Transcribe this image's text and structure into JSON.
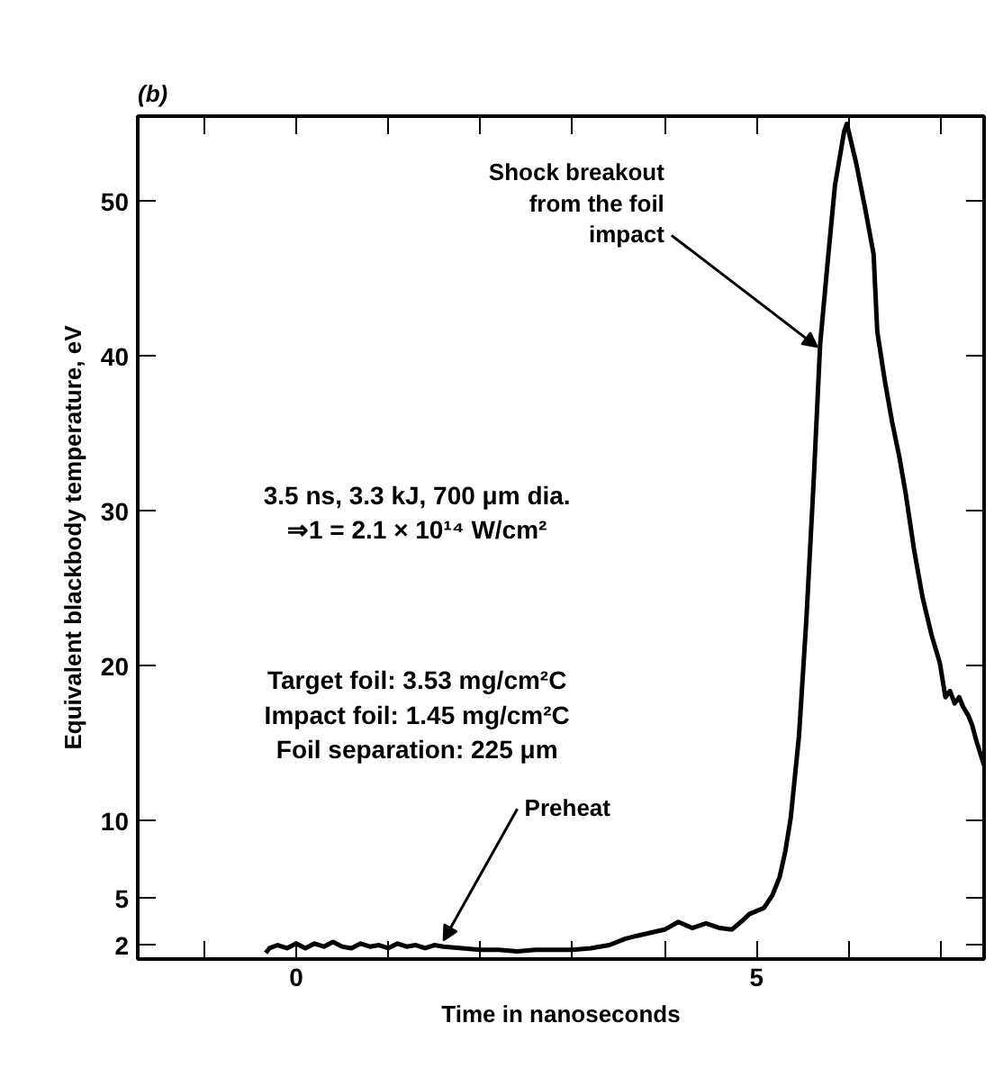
{
  "chart_data": {
    "type": "line",
    "title": "(b)",
    "xlabel": "Time in nanoseconds",
    "ylabel": "Equivalent blackbody temperature, eV",
    "x": [
      -0.33,
      -0.29,
      -0.2,
      -0.1,
      0.0,
      0.1,
      0.2,
      0.3,
      0.4,
      0.5,
      0.6,
      0.7,
      0.8,
      0.9,
      1.0,
      1.1,
      1.2,
      1.3,
      1.4,
      1.5,
      1.6,
      1.8,
      2.0,
      2.2,
      2.4,
      2.6,
      2.8,
      3.0,
      3.2,
      3.4,
      3.57,
      3.7,
      3.85,
      4.0,
      4.15,
      4.3,
      4.45,
      4.6,
      4.73,
      4.85,
      4.92,
      5.0,
      5.08,
      5.17,
      5.25,
      5.31,
      5.37,
      5.46,
      5.54,
      5.62,
      5.69,
      5.77,
      5.85,
      5.95,
      5.98,
      6.08,
      6.18,
      6.27,
      6.31,
      6.39,
      6.47,
      6.55,
      6.62,
      6.71,
      6.8,
      6.9,
      6.99,
      7.05,
      7.1,
      7.15,
      7.2,
      7.24,
      7.3,
      7.34,
      7.39,
      7.47
    ],
    "series": [
      {
        "color": "#000000",
        "values": [
          1.5,
          1.8,
          2.0,
          1.8,
          2.1,
          1.8,
          2.1,
          1.9,
          2.2,
          1.9,
          1.8,
          2.1,
          1.9,
          2.0,
          1.8,
          2.1,
          1.9,
          2.0,
          1.8,
          2.0,
          1.9,
          1.8,
          1.7,
          1.7,
          1.6,
          1.7,
          1.7,
          1.7,
          1.8,
          2.0,
          2.4,
          2.6,
          2.8,
          3.0,
          3.5,
          3.1,
          3.4,
          3.1,
          3.0,
          3.6,
          4.0,
          4.2,
          4.4,
          5.2,
          6.4,
          8.0,
          10.2,
          15.5,
          23.0,
          32.0,
          40.8,
          46.0,
          51.0,
          54.5,
          55.0,
          52.5,
          49.5,
          46.6,
          41.6,
          38.5,
          35.8,
          33.5,
          31.1,
          27.5,
          24.5,
          22.0,
          20.2,
          18.0,
          18.4,
          17.6,
          18.0,
          17.4,
          16.8,
          16.2,
          15.1,
          13.6
        ]
      }
    ],
    "xlim": [
      -1.72,
      7.47
    ],
    "ylim": [
      1.1,
      55.5
    ],
    "xticks": [
      {
        "value": -1,
        "label": null
      },
      0,
      {
        "value": 1,
        "label": null
      },
      {
        "value": 2,
        "label": null
      },
      {
        "value": 3,
        "label": null
      },
      {
        "value": 4,
        "label": null
      },
      5,
      {
        "value": 6,
        "label": null
      },
      {
        "value": 7,
        "label": null
      }
    ],
    "yticks": [
      2,
      5,
      10,
      20,
      30,
      40,
      50
    ],
    "annotations": [
      {
        "text": "Shock breakout\nfrom the foil\nimpact",
        "x": 5.66,
        "y": 40.6
      },
      {
        "text": "Preheat",
        "x": 1.6,
        "y": 2.3
      },
      "3.5 ns, 3.3 kJ, 700 μm dia.\n⇒1 = 2.1 × 10¹⁴ W/cm²",
      "Target foil: 3.53 mg/cm²C\nImpact foil: 1.45 mg/cm²C\nFoil separation: 225 μm"
    ],
    "marker": "none",
    "line_style": "solid"
  }
}
